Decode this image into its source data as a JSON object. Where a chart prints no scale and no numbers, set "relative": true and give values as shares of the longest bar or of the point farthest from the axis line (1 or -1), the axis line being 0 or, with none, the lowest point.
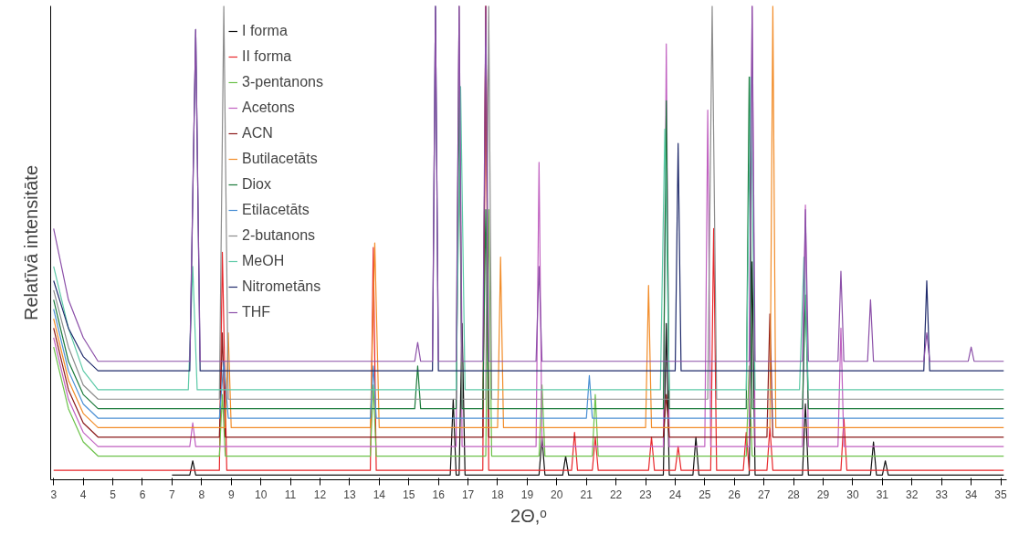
{
  "chart_data": {
    "type": "line",
    "relative": true,
    "xlabel": "2Θ,ᵒ",
    "ylabel": "Relatīvā intensitāte",
    "xlim": [
      2.9,
      35.2
    ],
    "xticks": [
      3,
      4,
      5,
      6,
      7,
      8,
      9,
      10,
      11,
      12,
      13,
      14,
      15,
      16,
      17,
      18,
      19,
      20,
      21,
      22,
      23,
      24,
      25,
      26,
      27,
      28,
      29,
      30,
      31,
      32,
      33,
      34,
      35
    ],
    "grid": false,
    "legend": "top left",
    "tick_labels": "x",
    "marker": "none",
    "line_style": "solid",
    "series": [
      {
        "name": "I forma",
        "color": "#111111",
        "x": [
          7,
          7.6,
          7.7,
          7.8,
          16.4,
          16.5,
          16.6,
          16.7,
          16.8,
          16.9,
          19.4,
          19.5,
          19.6,
          20.2,
          20.3,
          20.4,
          23.6,
          23.7,
          23.8,
          24.6,
          24.7,
          24.8,
          26.5,
          26.6,
          26.7,
          28.3,
          28.4,
          28.5,
          30.6,
          30.7,
          30.8,
          31.0,
          31.1,
          31.2,
          35.1
        ],
        "values": [
          0.01,
          0.01,
          0.04,
          0.01,
          0.01,
          0.17,
          0.01,
          0.01,
          0.33,
          0.01,
          0.01,
          0.09,
          0.01,
          0.01,
          0.05,
          0.01,
          0.01,
          0.33,
          0.01,
          0.01,
          0.09,
          0.01,
          0.01,
          0.46,
          0.01,
          0.01,
          0.16,
          0.01,
          0.01,
          0.08,
          0.01,
          0.01,
          0.04,
          0.01,
          0.01
        ]
      },
      {
        "name": "II forma",
        "color": "#e8262a",
        "x": [
          3,
          8.6,
          8.7,
          8.85,
          13.7,
          13.8,
          13.9,
          17.5,
          17.6,
          17.7,
          20.5,
          20.6,
          20.7,
          21.2,
          21.3,
          21.4,
          23.1,
          23.2,
          23.3,
          24.0,
          24.1,
          24.2,
          25.2,
          25.3,
          25.4,
          26.3,
          26.4,
          26.5,
          27.1,
          27.2,
          27.3,
          29.6,
          29.7,
          29.8,
          35.1
        ],
        "values": [
          0.02,
          0.02,
          0.48,
          0.02,
          0.02,
          0.49,
          0.02,
          0.02,
          1,
          0.02,
          0.02,
          0.1,
          0.02,
          0.02,
          0.09,
          0.02,
          0.02,
          0.09,
          0.02,
          0.02,
          0.07,
          0.02,
          0.02,
          0.53,
          0.02,
          0.02,
          0.1,
          0.02,
          0.02,
          0.11,
          0.02,
          0.02,
          0.13,
          0.02,
          0.02
        ]
      },
      {
        "name": "3-pentanons",
        "color": "#6cc24a",
        "x": [
          3,
          3.5,
          4,
          4.5,
          8.6,
          8.7,
          8.8,
          13.7,
          13.8,
          13.9,
          17.6,
          17.7,
          17.8,
          19.4,
          19.5,
          19.6,
          21.2,
          21.3,
          21.4,
          26.4,
          26.5,
          26.6,
          35.1
        ],
        "values": [
          0.28,
          0.15,
          0.08,
          0.05,
          0.05,
          0.18,
          0.05,
          0.05,
          0.2,
          0.05,
          0.05,
          0.57,
          0.05,
          0.05,
          0.2,
          0.05,
          0.05,
          0.18,
          0.05,
          0.05,
          0.24,
          0.05,
          0.05
        ]
      },
      {
        "name": "Acetons",
        "color": "#c060c0",
        "x": [
          3,
          3.5,
          4,
          4.5,
          7.6,
          7.7,
          7.8,
          16.6,
          16.7,
          16.8,
          19.3,
          19.4,
          19.5,
          23.6,
          23.7,
          23.8,
          25.0,
          25.1,
          25.2,
          26.5,
          26.6,
          26.7,
          28.3,
          28.4,
          28.5,
          29.5,
          29.6,
          29.7,
          35.1
        ],
        "values": [
          0.3,
          0.17,
          0.1,
          0.07,
          0.07,
          0.12,
          0.07,
          0.07,
          1,
          0.07,
          0.07,
          0.67,
          0.07,
          0.07,
          0.92,
          0.07,
          0.07,
          0.78,
          0.07,
          0.07,
          1,
          0.07,
          0.07,
          0.58,
          0.07,
          0.07,
          0.32,
          0.07,
          0.07
        ]
      },
      {
        "name": "ACN",
        "color": "#8b1a1a",
        "x": [
          3,
          3.5,
          4,
          4.5,
          8.6,
          8.7,
          8.8,
          17.5,
          17.6,
          17.7,
          23.6,
          23.7,
          23.8,
          27.1,
          27.2,
          27.3,
          35.1
        ],
        "values": [
          0.32,
          0.19,
          0.12,
          0.09,
          0.09,
          0.31,
          0.09,
          0.09,
          1,
          0.09,
          0.09,
          0.18,
          0.09,
          0.09,
          0.35,
          0.09,
          0.09
        ]
      },
      {
        "name": "Butilacetāts",
        "color": "#f28c28",
        "x": [
          3,
          3.5,
          4,
          4.5,
          8.8,
          8.9,
          9.0,
          13.7,
          13.85,
          14.0,
          18.0,
          18.1,
          18.2,
          23.0,
          23.1,
          23.2,
          27.2,
          27.3,
          27.4,
          35.1
        ],
        "values": [
          0.34,
          0.21,
          0.14,
          0.11,
          0.11,
          0.31,
          0.11,
          0.11,
          0.5,
          0.11,
          0.11,
          0.47,
          0.11,
          0.11,
          0.41,
          0.11,
          0.11,
          1,
          0.11,
          0.11
        ]
      },
      {
        "name": "Diox",
        "color": "#1a7a3a",
        "x": [
          3,
          3.5,
          4,
          4.5,
          15.2,
          15.3,
          15.4,
          16.6,
          16.7,
          16.8,
          17.5,
          17.6,
          17.7,
          23.6,
          23.7,
          23.8,
          26.4,
          26.5,
          26.6,
          28.3,
          28.4,
          28.5,
          35.1
        ],
        "values": [
          0.38,
          0.25,
          0.18,
          0.15,
          0.15,
          0.24,
          0.15,
          0.15,
          0.82,
          0.15,
          0.15,
          0.57,
          0.15,
          0.15,
          0.8,
          0.15,
          0.15,
          0.85,
          0.15,
          0.15,
          0.39,
          0.15,
          0.15
        ]
      },
      {
        "name": "Etilacetāts",
        "color": "#4a8fd4",
        "x": [
          3,
          3.5,
          4,
          4.5,
          8.6,
          8.75,
          8.9,
          13.7,
          13.8,
          13.9,
          21.0,
          21.1,
          21.2,
          35.1
        ],
        "values": [
          0.36,
          0.23,
          0.16,
          0.13,
          0.13,
          0.25,
          0.13,
          0.13,
          0.24,
          0.13,
          0.13,
          0.22,
          0.13,
          0.13
        ]
      },
      {
        "name": "2-butanons",
        "color": "#8c8c8c",
        "x": [
          3,
          3.5,
          4,
          4.5,
          8.6,
          8.75,
          8.9,
          16.6,
          16.7,
          16.8,
          17.6,
          17.7,
          17.8,
          25.1,
          25.25,
          25.4,
          35.1
        ],
        "values": [
          0.4,
          0.28,
          0.2,
          0.17,
          0.17,
          1,
          0.17,
          0.17,
          1,
          0.17,
          0.17,
          1,
          0.17,
          0.17,
          1,
          0.17,
          0.17
        ]
      },
      {
        "name": "MeOH",
        "color": "#5cc9a7",
        "x": [
          3,
          3.5,
          4,
          4.5,
          7.55,
          7.7,
          7.85,
          16.6,
          16.75,
          16.9,
          23.5,
          23.65,
          23.8,
          26.4,
          26.55,
          26.7,
          28.2,
          28.35,
          28.5,
          35.1
        ],
        "values": [
          0.45,
          0.32,
          0.23,
          0.19,
          0.19,
          0.45,
          0.19,
          0.19,
          0.83,
          0.19,
          0.19,
          0.74,
          0.19,
          0.19,
          0.85,
          0.19,
          0.19,
          0.47,
          0.19,
          0.19
        ]
      },
      {
        "name": "Nitrometāns",
        "color": "#1f2a6b",
        "x": [
          3,
          3.5,
          4,
          4.5,
          7.6,
          7.8,
          7.95,
          15.8,
          15.9,
          16.0,
          24.0,
          24.1,
          24.2,
          32.4,
          32.5,
          32.6,
          35.1
        ],
        "values": [
          0.42,
          0.32,
          0.26,
          0.23,
          0.23,
          0.95,
          0.23,
          0.23,
          1,
          0.23,
          0.23,
          0.71,
          0.23,
          0.23,
          0.42,
          0.23,
          0.23
        ]
      },
      {
        "name": "THF",
        "color": "#8b4fa8",
        "x": [
          3,
          3.5,
          4,
          4.5,
          7.6,
          7.8,
          7.95,
          15.2,
          15.3,
          15.4,
          15.8,
          15.9,
          16.0,
          16.6,
          16.7,
          16.8,
          17.5,
          17.6,
          17.7,
          19.3,
          19.4,
          19.5,
          26.5,
          26.6,
          26.7,
          28.3,
          28.4,
          28.5,
          29.5,
          29.6,
          29.7,
          30.5,
          30.6,
          30.7,
          32.4,
          32.5,
          32.6,
          33.9,
          34.0,
          34.1,
          35.1
        ],
        "values": [
          0.53,
          0.38,
          0.3,
          0.25,
          0.25,
          0.95,
          0.25,
          0.25,
          0.29,
          0.25,
          0.25,
          1,
          0.25,
          0.25,
          1,
          0.25,
          0.25,
          1,
          0.25,
          0.25,
          0.45,
          0.25,
          0.25,
          1,
          0.25,
          0.25,
          0.57,
          0.25,
          0.25,
          0.44,
          0.25,
          0.25,
          0.38,
          0.25,
          0.25,
          0.31,
          0.25,
          0.25,
          0.28,
          0.25,
          0.25
        ]
      }
    ]
  }
}
